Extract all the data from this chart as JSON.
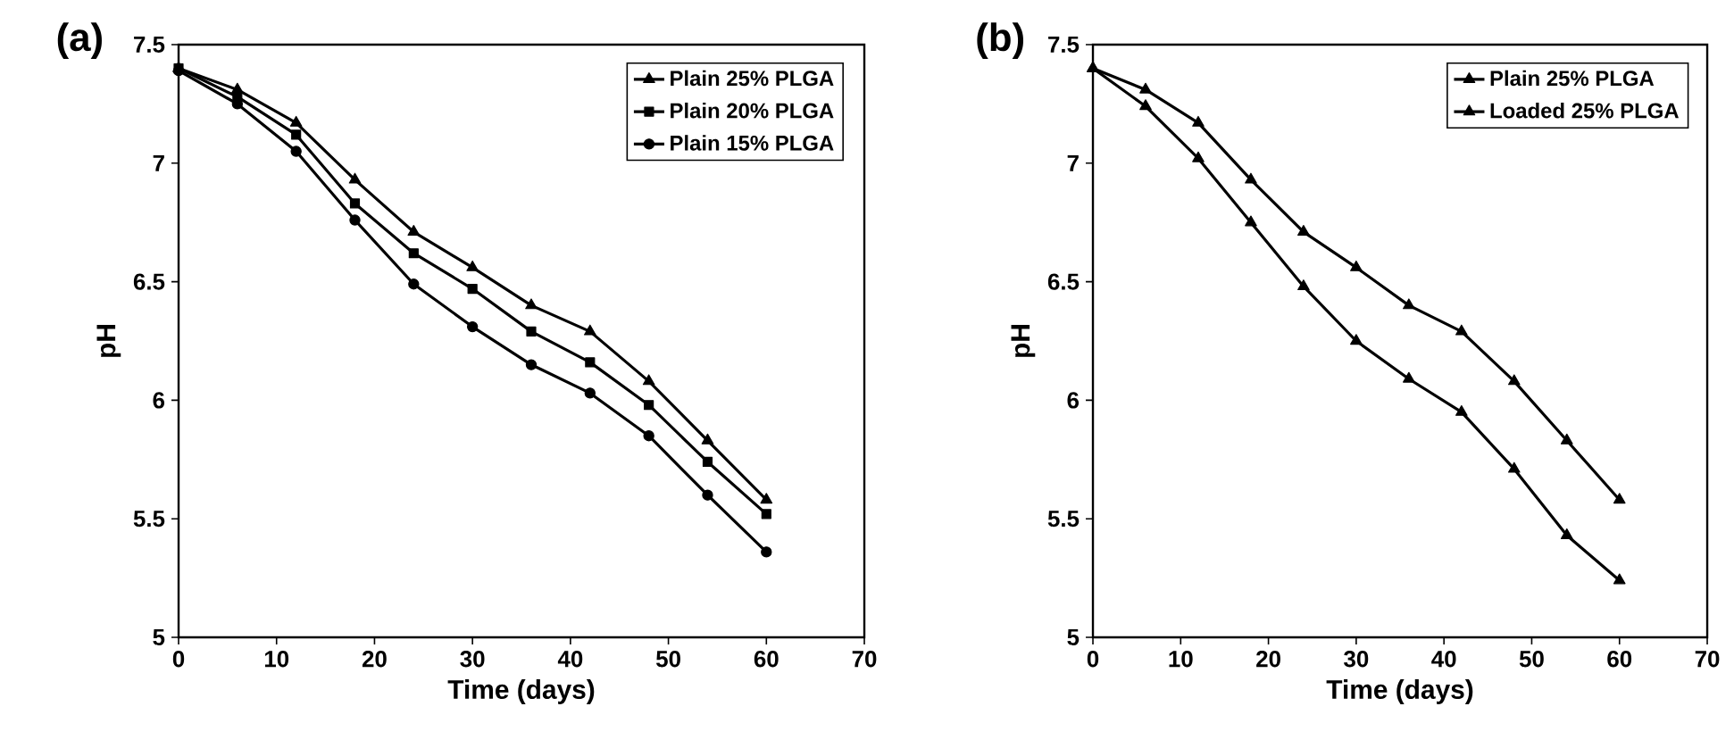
{
  "chart_data": [
    {
      "type": "line",
      "title": "(a)",
      "xlabel": "Time (days)",
      "ylabel": "pH",
      "x": [
        0,
        6,
        12,
        18,
        24,
        30,
        36,
        42,
        48,
        54,
        60
      ],
      "series": [
        {
          "name": "Plain 25% PLGA",
          "color": "#000000",
          "marker": "triangle",
          "values": [
            7.4,
            7.31,
            7.17,
            6.93,
            6.71,
            6.56,
            6.4,
            6.29,
            6.08,
            5.83,
            5.58
          ]
        },
        {
          "name": "Plain 20% PLGA",
          "color": "#000000",
          "marker": "square",
          "values": [
            7.4,
            7.28,
            7.12,
            6.83,
            6.62,
            6.47,
            6.29,
            6.16,
            5.98,
            5.74,
            5.52
          ]
        },
        {
          "name": "Plain 15% PLGA",
          "color": "#000000",
          "marker": "circle",
          "values": [
            7.39,
            7.25,
            7.05,
            6.76,
            6.49,
            6.31,
            6.15,
            6.03,
            5.85,
            5.6,
            5.36
          ]
        }
      ],
      "xlim": [
        0,
        70
      ],
      "ylim": [
        5,
        7.5
      ],
      "xticks": [
        0,
        10,
        20,
        30,
        40,
        50,
        60,
        70
      ],
      "yticks": [
        5,
        5.5,
        6,
        6.5,
        7,
        7.5
      ],
      "legend": "top right",
      "line_style": "solid"
    },
    {
      "type": "line",
      "title": "(b)",
      "xlabel": "Time (days)",
      "ylabel": "pH",
      "x": [
        0,
        6,
        12,
        18,
        24,
        30,
        36,
        42,
        48,
        54,
        60
      ],
      "series": [
        {
          "name": "Plain 25% PLGA",
          "color": "#000000",
          "marker": "triangle",
          "values": [
            7.4,
            7.31,
            7.17,
            6.93,
            6.71,
            6.56,
            6.4,
            6.29,
            6.08,
            5.83,
            5.58
          ]
        },
        {
          "name": "Loaded 25% PLGA",
          "color": "#000000",
          "marker": "triangle",
          "values": [
            7.4,
            7.24,
            7.02,
            6.75,
            6.48,
            6.25,
            6.09,
            5.95,
            5.71,
            5.43,
            5.24
          ]
        }
      ],
      "xlim": [
        0,
        70
      ],
      "ylim": [
        5,
        7.5
      ],
      "xticks": [
        0,
        10,
        20,
        30,
        40,
        50,
        60,
        70
      ],
      "yticks": [
        5,
        5.5,
        6,
        6.5,
        7,
        7.5
      ],
      "legend": "top right",
      "line_style": "solid"
    }
  ]
}
